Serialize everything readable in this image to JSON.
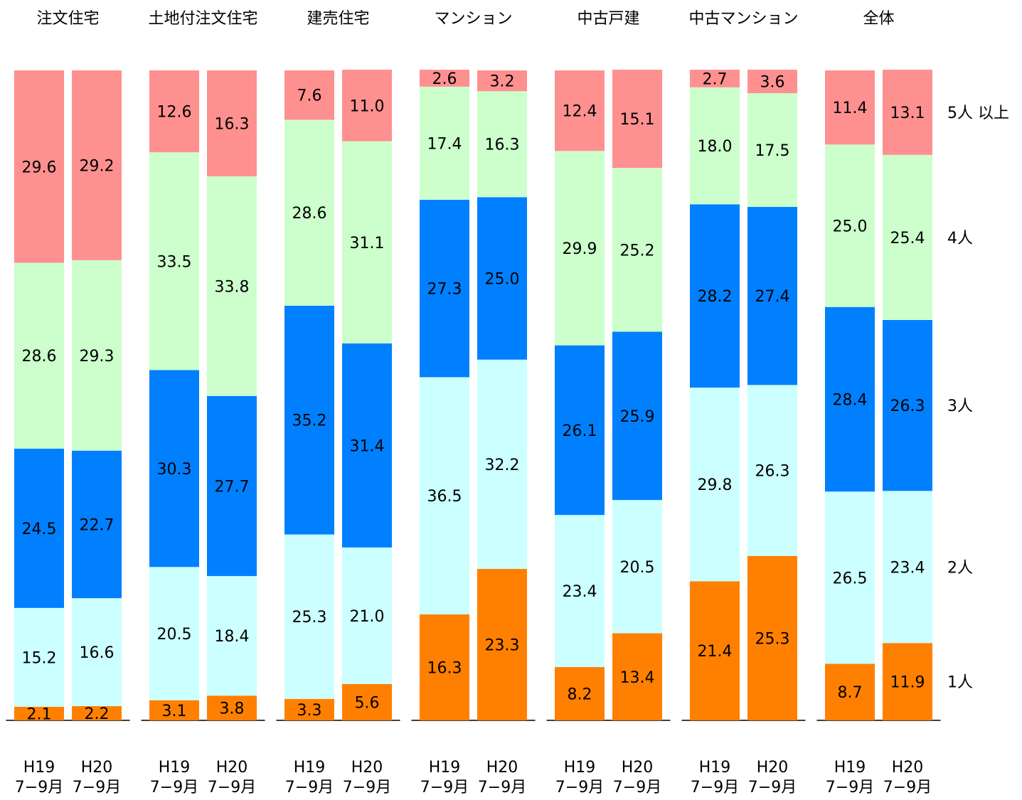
{
  "chart_data": {
    "type": "stacked-bar",
    "groups": [
      "注文住宅",
      "土地付注文住宅",
      "建売住宅",
      "マンション",
      "中古戸建",
      "中古マンション",
      "全体"
    ],
    "categories": [
      [
        "H19",
        "7−9月"
      ],
      [
        "H20",
        "7−9月"
      ],
      [
        "H19",
        "7−9月"
      ],
      [
        "H20",
        "7−9月"
      ],
      [
        "H19",
        "7−9月"
      ],
      [
        "H20",
        "7−9月"
      ],
      [
        "H19",
        "7−9月"
      ],
      [
        "H20",
        "7−9月"
      ],
      [
        "H19",
        "7−9月"
      ],
      [
        "H20",
        "7−9月"
      ],
      [
        "H19",
        "7−9月"
      ],
      [
        "H20",
        "7−9月"
      ],
      [
        "H19",
        "7−9月"
      ],
      [
        "H20",
        "7−9月"
      ]
    ],
    "ylim": [
      0,
      100
    ],
    "series": [
      {
        "name": "1人",
        "color": "#ff8000",
        "values": [
          2.1,
          2.2,
          3.1,
          3.8,
          3.3,
          5.6,
          16.3,
          23.3,
          8.2,
          13.4,
          21.4,
          25.3,
          8.7,
          11.9
        ],
        "value_labels": [
          "2.1",
          "2.2",
          "3.1",
          "3.8",
          "3.3",
          "5.6",
          "16.3",
          "23.3",
          "8.2",
          "13.4",
          "21.4",
          "25.3",
          "8.7",
          "11.9"
        ]
      },
      {
        "name": "2人",
        "color": "#ccffff",
        "values": [
          15.2,
          16.6,
          20.5,
          18.4,
          25.3,
          21.0,
          36.5,
          32.2,
          23.4,
          20.5,
          29.8,
          26.3,
          26.5,
          23.4
        ],
        "value_labels": [
          "15.2",
          "16.6",
          "20.5",
          "18.4",
          "25.3",
          "21.0",
          "36.5",
          "32.2",
          "23.4",
          "20.5",
          "29.8",
          "26.3",
          "26.5",
          "23.4"
        ]
      },
      {
        "name": "3人",
        "color": "#0080ff",
        "values": [
          24.5,
          22.7,
          30.3,
          27.7,
          35.2,
          31.4,
          27.3,
          25.0,
          26.1,
          25.9,
          28.2,
          27.4,
          28.4,
          26.3
        ],
        "value_labels": [
          "24.5",
          "22.7",
          "30.3",
          "27.7",
          "35.2",
          "31.4",
          "27.3",
          "25.0",
          "26.1",
          "25.9",
          "28.2",
          "27.4",
          "28.4",
          "26.3"
        ]
      },
      {
        "name": "4人",
        "color": "#ccffcc",
        "values": [
          28.6,
          29.3,
          33.5,
          33.8,
          28.6,
          31.1,
          17.4,
          16.3,
          29.9,
          25.2,
          18.0,
          17.5,
          25.0,
          25.4
        ],
        "value_labels": [
          "28.6",
          "29.3",
          "33.5",
          "33.8",
          "28.6",
          "31.1",
          "17.4",
          "16.3",
          "29.9",
          "25.2",
          "18.0",
          "17.5",
          "25.0",
          "25.4"
        ]
      },
      {
        "name": "5人 以上",
        "color": "#ff9090",
        "values": [
          29.6,
          29.2,
          12.6,
          16.3,
          7.6,
          11.0,
          2.6,
          3.2,
          12.4,
          15.1,
          2.7,
          3.6,
          11.4,
          13.1
        ],
        "value_labels": [
          "29.6",
          "29.2",
          "12.6",
          "16.3",
          "7.6",
          "11.0",
          "2.6",
          "3.2",
          "12.4",
          "15.1",
          "2.7",
          "3.6",
          "11.4",
          "13.1"
        ]
      }
    ]
  }
}
